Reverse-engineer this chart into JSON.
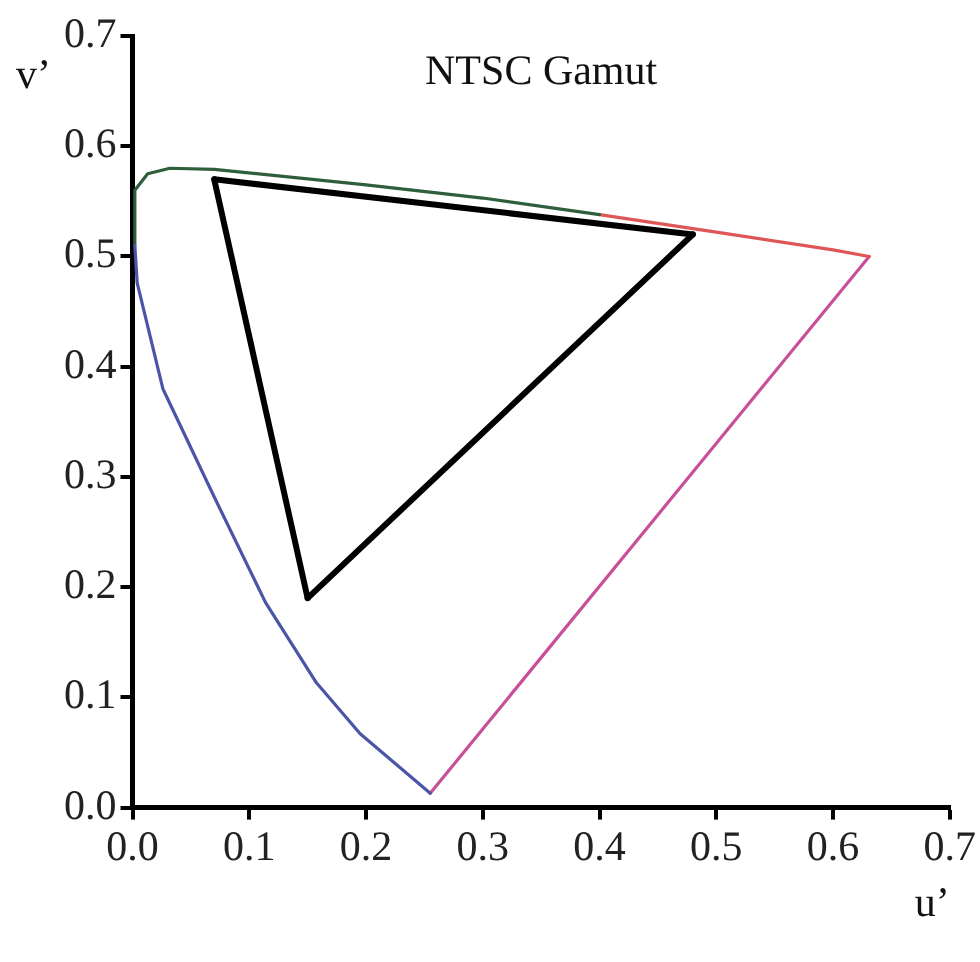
{
  "chart_data": {
    "type": "line",
    "title": "NTSC Gamut",
    "xlabel": "u’",
    "ylabel": "v’",
    "xlim": [
      0,
      0.7
    ],
    "ylim": [
      0,
      0.7
    ],
    "xticks": [
      {
        "value": 0,
        "label": "0.0"
      },
      0.1,
      0.2,
      0.3,
      0.4,
      0.5,
      0.6,
      0.7
    ],
    "yticks": [
      {
        "value": 0,
        "label": "0.0"
      },
      0.1,
      0.2,
      0.3,
      0.4,
      0.5,
      0.6,
      0.7
    ],
    "grid": false,
    "legend": false,
    "marker": "none",
    "line_style": "solid",
    "series": [
      {
        "color": "#4a55a8",
        "x": [
          0.255,
          0.195,
          0.157,
          0.114,
          0.069,
          0.026,
          0.004,
          0.002
        ],
        "values": [
          0.013,
          0.067,
          0.114,
          0.186,
          0.284,
          0.38,
          0.476,
          0.51
        ]
      },
      {
        "color": "#2f5e3c",
        "x": [
          0.002,
          0.002,
          0.013,
          0.032,
          0.07,
          0.2,
          0.3,
          0.4
        ],
        "values": [
          0.51,
          0.56,
          0.575,
          0.58,
          0.579,
          0.565,
          0.553,
          0.538
        ]
      },
      {
        "color": "#e05555",
        "x": [
          0.4,
          0.5,
          0.6,
          0.631
        ],
        "values": [
          0.538,
          0.522,
          0.506,
          0.5
        ]
      },
      {
        "color": "#c8509a",
        "x": [
          0.631,
          0.255
        ],
        "values": [
          0.5,
          0.013
        ]
      },
      {
        "color": "#000000",
        "x": [
          0.07,
          0.48
        ],
        "values": [
          0.57,
          0.52
        ]
      },
      {
        "color": "#000000",
        "x": [
          0.07,
          0.15
        ],
        "values": [
          0.57,
          0.19
        ]
      },
      {
        "color": "#000000",
        "x": [
          0.15,
          0.48
        ],
        "values": [
          0.19,
          0.52
        ]
      }
    ]
  }
}
